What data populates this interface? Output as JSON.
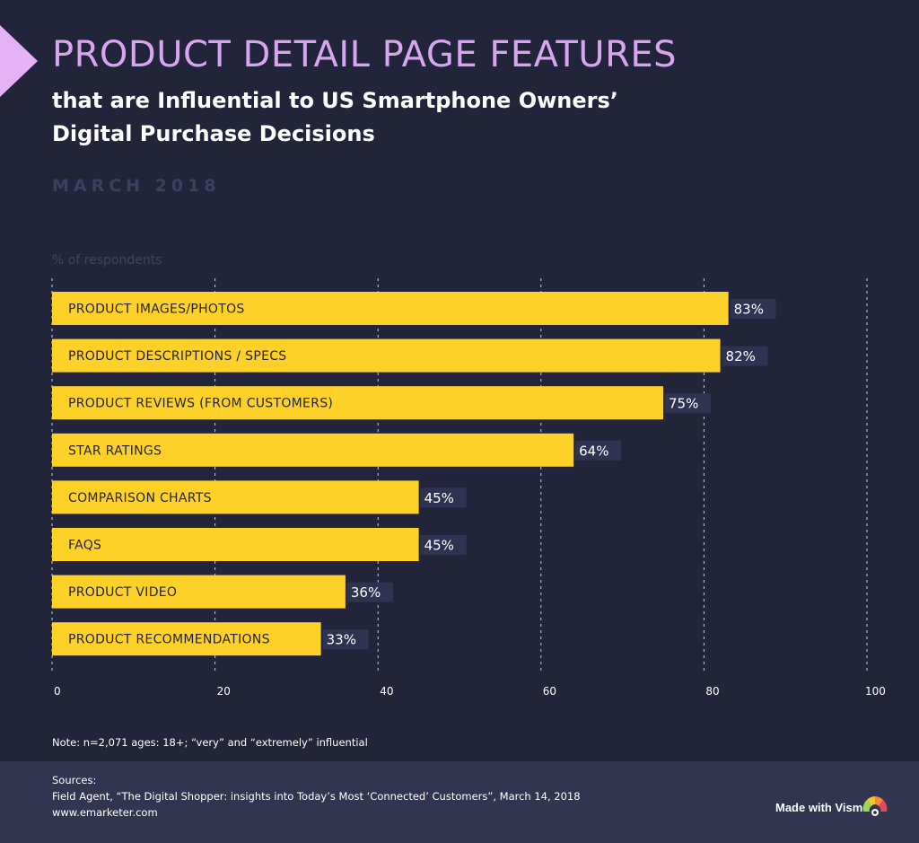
{
  "header": {
    "title": "PRODUCT DETAIL PAGE FEATURES",
    "subtitle": "that are Influential to US Smartphone Owners’ Digital Purchase Decisions",
    "date": "MARCH 2018"
  },
  "note": "Note: n=2,071 ages: 18+; “very” and “extremely” influential",
  "footer": {
    "sources_label": "Sources:",
    "source_1": "Field Agent, “The Digital Shopper: insights into Today’s Most  ‘Connected’ Customers”, March 14, 2018",
    "source_2": "www.emarketer.com",
    "made_with": "Made with Visme"
  },
  "colors": {
    "background": "#22243a",
    "bar": "#fdd127",
    "value_box": "#2f3352",
    "title": "#d7a6ec",
    "accent": "#e6b2f6"
  },
  "chart_data": {
    "type": "bar",
    "orientation": "horizontal",
    "title": "PRODUCT DETAIL PAGE FEATURES",
    "unit_label": "% of respondents",
    "categories": [
      "PRODUCT IMAGES/PHOTOS",
      "PRODUCT DESCRIPTIONS / SPECS",
      "PRODUCT REVIEWS (FROM CUSTOMERS)",
      "STAR RATINGS",
      "COMPARISON CHARTS",
      "FAQS",
      "PRODUCT VIDEO",
      "PRODUCT RECOMMENDATIONS"
    ],
    "values": [
      83,
      82,
      75,
      64,
      45,
      45,
      36,
      33
    ],
    "value_suffix": "%",
    "xlim": [
      0,
      100
    ],
    "xticks": [
      0,
      20,
      40,
      60,
      80,
      100
    ],
    "grid": true
  }
}
